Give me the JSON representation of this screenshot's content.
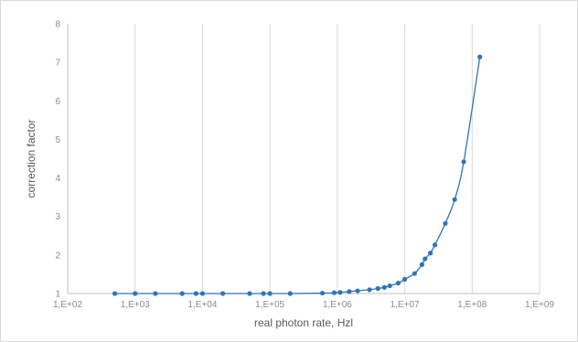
{
  "chart_data": {
    "type": "scatter",
    "title": "",
    "xlabel": "real photon rate, Hzl",
    "ylabel": "correction factor",
    "x_scale": "log",
    "xlim": [
      100,
      1000000000
    ],
    "ylim": [
      1,
      8
    ],
    "x_tick_values": [
      100,
      1000,
      10000,
      100000,
      1000000,
      10000000,
      100000000,
      1000000000
    ],
    "x_tick_labels": [
      "1,E+02",
      "1,E+03",
      "1,E+04",
      "1,E+05",
      "1,E+06",
      "1,E+07",
      "1,E+08",
      "1,E+09"
    ],
    "y_tick_values": [
      1,
      2,
      3,
      4,
      5,
      6,
      7,
      8
    ],
    "y_tick_labels": [
      "1",
      "2",
      "3",
      "4",
      "5",
      "6",
      "7",
      "8"
    ],
    "grid": "vertical",
    "legend": "none",
    "series_color": "#2e75b6",
    "series": [
      {
        "style": "smoothed line with markers",
        "x": [
          500,
          1000,
          2000,
          5000,
          8000,
          10000,
          20000,
          50000,
          80000,
          100000,
          200000,
          600000,
          900000,
          1100000,
          1500000,
          2000000,
          3000000,
          4000000,
          5000000,
          6000000,
          8000000,
          10000000,
          14000000,
          18000000,
          20000000,
          24000000,
          28000000,
          40000000,
          55000000,
          75000000,
          130000000
        ],
        "y": [
          1.0,
          1.0,
          1.0,
          1.0,
          1.0,
          1.0,
          1.0,
          1.0,
          1.0,
          1.0,
          1.0,
          1.01,
          1.02,
          1.03,
          1.05,
          1.07,
          1.1,
          1.13,
          1.16,
          1.2,
          1.27,
          1.37,
          1.52,
          1.75,
          1.9,
          2.05,
          2.26,
          2.82,
          3.44,
          4.42,
          7.14
        ]
      }
    ]
  }
}
